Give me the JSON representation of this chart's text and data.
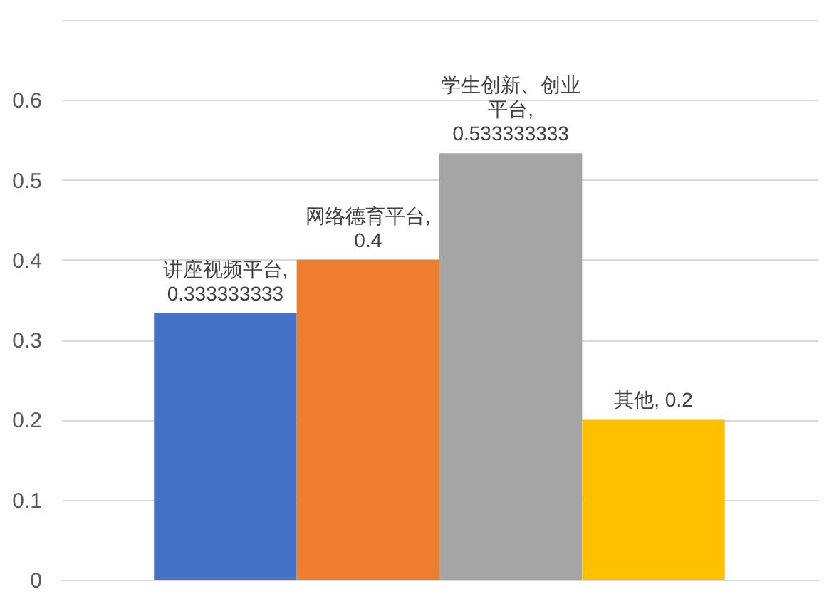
{
  "chart_data": {
    "type": "bar",
    "categories": [
      null,
      null,
      null,
      null
    ],
    "values": [
      0.333333333,
      0.4,
      0.533333333,
      0.2
    ],
    "colors": [
      "#4472c4",
      "#ed7d31",
      "#a5a5a5",
      "#ffc000"
    ],
    "value_labels": [
      "讲座视频平台, 0.333333333",
      "网络德育平台, 0.4",
      "学生创新、创业平台, 0.533333333",
      "其他, 0.2"
    ],
    "ylim": [
      0,
      0.7
    ],
    "yticks": [
      0,
      0.1,
      0.2,
      0.3,
      0.4,
      0.5,
      0.6,
      {
        "value": 0.7,
        "label": null
      }
    ],
    "grid": "y",
    "tick_labels": "y",
    "legend": false
  }
}
